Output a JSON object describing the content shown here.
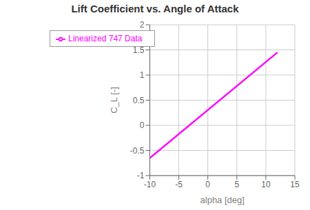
{
  "chart_data": {
    "type": "line",
    "title": "Lift Coefficient vs. Angle of Attack",
    "xlabel": "alpha [deg]",
    "ylabel": "C_L [-]",
    "x": [
      -10,
      12
    ],
    "series": [
      {
        "name": "Linearized 747 Data",
        "color": "#FF00FF",
        "values": [
          -0.65,
          1.45
        ]
      }
    ],
    "xlim": [
      -10,
      15
    ],
    "ylim": [
      -1,
      2
    ],
    "xticks": [
      -10,
      -5,
      0,
      5,
      10,
      15
    ],
    "yticks": [
      -1,
      -0.5,
      0,
      0.5,
      1,
      1.5,
      2
    ],
    "grid": true,
    "legend": "upper left"
  }
}
